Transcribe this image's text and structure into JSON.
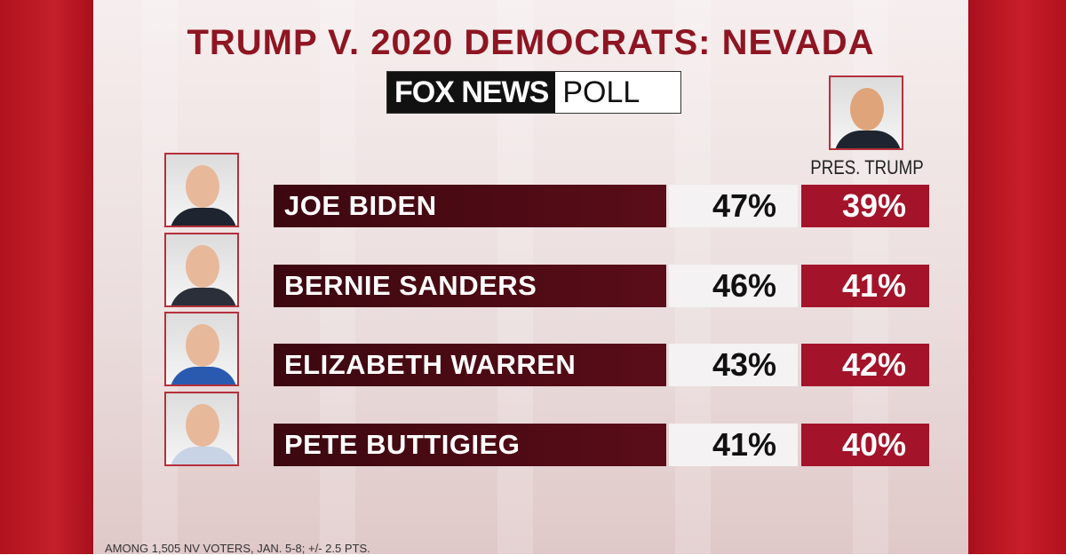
{
  "header": {
    "title": "TRUMP V. 2020 DEMOCRATS: NEVADA",
    "logo_brand": "FOX NEWS",
    "logo_word": "POLL"
  },
  "opponent_label": "PRES. TRUMP",
  "table": {
    "rows": [
      {
        "name": "JOE BIDEN",
        "democrat": "47%",
        "trump": "39%"
      },
      {
        "name": "BERNIE SANDERS",
        "democrat": "46%",
        "trump": "41%"
      },
      {
        "name": "ELIZABETH WARREN",
        "democrat": "43%",
        "trump": "42%"
      },
      {
        "name": "PETE BUTTIGIEG",
        "democrat": "41%",
        "trump": "40%"
      }
    ]
  },
  "footnote": "AMONG 1,505 NV VOTERS, JAN. 5-8; +/- 2.5 PTS."
}
